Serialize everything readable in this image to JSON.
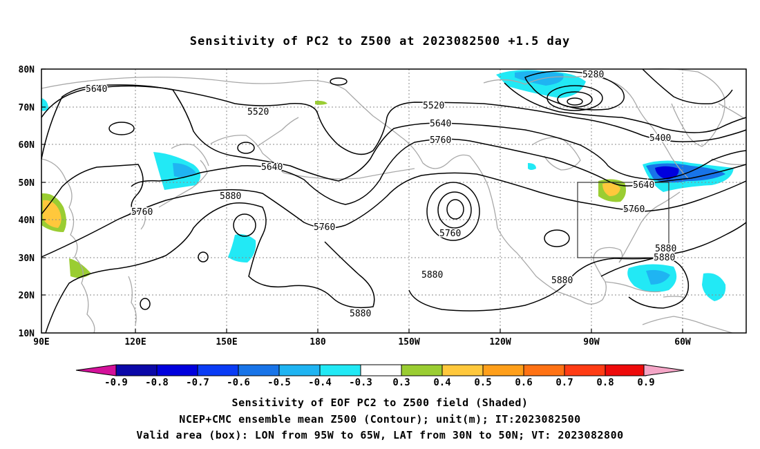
{
  "title": "Sensitivity of PC2 to Z500 at 2023082500 +1.5 day",
  "lat_labels": [
    "80N",
    "70N",
    "60N",
    "50N",
    "40N",
    "30N",
    "20N",
    "10N"
  ],
  "lon_labels": [
    "90E",
    "120E",
    "150E",
    "180",
    "150W",
    "120W",
    "90W",
    "60W"
  ],
  "contour_labels": {
    "c5280": "5280",
    "c5400": "5400",
    "c5520": "5520",
    "c5640": "5640",
    "c5760": "5760",
    "c5880": "5880"
  },
  "colorbar": {
    "labels": [
      "-0.9",
      "-0.8",
      "-0.7",
      "-0.6",
      "-0.5",
      "-0.4",
      "-0.3",
      "0.3",
      "0.4",
      "0.5",
      "0.6",
      "0.7",
      "0.8",
      "0.9"
    ],
    "colors": [
      "#0b08a8",
      "#0000dd",
      "#0a3cf5",
      "#1874e8",
      "#1fb4f2",
      "#22e9f5",
      "#ffffff",
      "#9acd32",
      "#ffc83c",
      "#ff9f1a",
      "#ff7214",
      "#ff3c14",
      "#ee0a0a"
    ],
    "low_extension_color": "#d4119a",
    "high_extension_color": "#f5a6c7"
  },
  "colors": {
    "coast": "#a8a8a8",
    "grid": "#888888",
    "contour": "#000000",
    "box": "#333333"
  },
  "caption": {
    "line1": "Sensitivity of EOF PC2 to Z500 field (Shaded)",
    "line2": "NCEP+CMC ensemble mean Z500 (Contour); unit(m); IT:2023082500",
    "line3": "Valid area (box): LON from 95W to 65W, LAT from 30N to 50N; VT: 2023082800"
  }
}
